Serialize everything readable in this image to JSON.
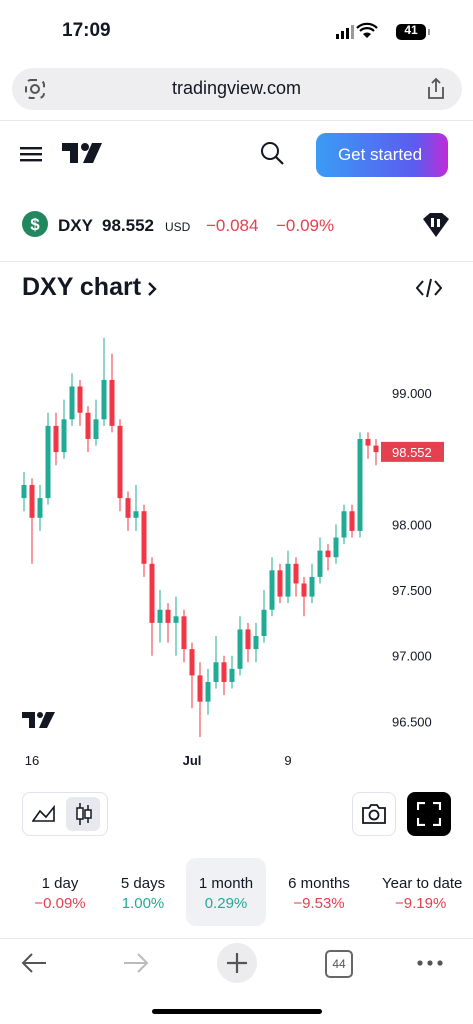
{
  "status_bar": {
    "time": "17:09",
    "battery": "41"
  },
  "browser": {
    "url": "tradingview.com",
    "tab_count": "44"
  },
  "header": {
    "cta": "Get started"
  },
  "quote": {
    "symbol": "DXY",
    "price": "98.552",
    "currency": "USD",
    "change": "−0.084",
    "change_percent": "−0.09%"
  },
  "chart_data": {
    "type": "candlestick",
    "title": "DXY chart",
    "open": [
      98.2,
      98.3,
      98.05,
      98.2,
      98.75,
      98.55,
      98.8,
      99.05,
      98.85,
      98.65,
      98.8,
      99.1,
      98.75,
      98.2,
      98.05,
      98.1,
      97.7,
      97.25,
      97.35,
      97.25,
      97.3,
      97.05,
      96.85,
      96.65,
      96.8,
      96.95,
      96.8,
      96.9,
      97.2,
      97.05,
      97.15,
      97.35,
      97.65,
      97.45,
      97.7,
      97.55,
      97.45,
      97.6,
      97.8,
      97.75,
      97.9,
      98.1,
      97.95,
      98.65,
      98.6
    ],
    "high": [
      98.4,
      98.35,
      98.3,
      98.85,
      98.85,
      98.95,
      99.15,
      99.1,
      98.9,
      98.95,
      99.42,
      99.3,
      98.8,
      98.25,
      98.3,
      98.15,
      97.75,
      97.5,
      97.4,
      97.45,
      97.35,
      97.1,
      96.95,
      96.9,
      97.15,
      97.0,
      97.0,
      97.3,
      97.25,
      97.25,
      97.5,
      97.75,
      97.7,
      97.8,
      97.75,
      97.6,
      97.7,
      97.9,
      97.85,
      98.0,
      98.15,
      98.15,
      98.7,
      98.7,
      98.65
    ],
    "low": [
      98.1,
      97.7,
      97.95,
      98.15,
      98.45,
      98.5,
      98.75,
      98.75,
      98.55,
      98.6,
      98.75,
      98.7,
      98.1,
      97.95,
      97.95,
      97.6,
      97.0,
      97.1,
      97.1,
      97.0,
      96.95,
      96.6,
      96.38,
      96.55,
      96.75,
      96.7,
      96.75,
      96.85,
      96.95,
      96.95,
      97.1,
      97.3,
      97.4,
      97.4,
      97.45,
      97.3,
      97.4,
      97.55,
      97.65,
      97.7,
      97.85,
      97.9,
      97.9,
      98.5,
      98.45
    ],
    "close": [
      98.3,
      98.05,
      98.2,
      98.75,
      98.55,
      98.8,
      99.05,
      98.85,
      98.65,
      98.8,
      99.1,
      98.75,
      98.2,
      98.05,
      98.1,
      97.7,
      97.25,
      97.35,
      97.25,
      97.3,
      97.05,
      96.85,
      96.65,
      96.8,
      96.95,
      96.8,
      96.9,
      97.2,
      97.05,
      97.15,
      97.35,
      97.65,
      97.45,
      97.7,
      97.55,
      97.45,
      97.6,
      97.8,
      97.75,
      97.9,
      98.1,
      97.95,
      98.65,
      98.6,
      98.55
    ],
    "up_color": "#22ab94",
    "down_color": "#f23645",
    "last_price": 98.552,
    "last_price_color": "#e5404f",
    "xlim": [
      -0.5,
      44.5
    ],
    "xticks": [
      {
        "value": 1,
        "label": "16"
      },
      {
        "value": 21,
        "label": "Jul"
      },
      {
        "value": 33,
        "label": "9"
      }
    ],
    "ylim": [
      96.32,
      99.48
    ],
    "yticks": [
      {
        "value": 99,
        "label": "99.000"
      },
      {
        "value": 98,
        "label": "98.000"
      },
      {
        "value": 97.5,
        "label": "97.500"
      },
      {
        "value": 97,
        "label": "97.000"
      },
      {
        "value": 96.5,
        "label": "96.500"
      }
    ],
    "grid": false
  },
  "periods": [
    {
      "name": "1 day",
      "change": "−0.09%"
    },
    {
      "name": "5 days",
      "change": "1.00%"
    },
    {
      "name": "1 month",
      "change": "0.29%"
    },
    {
      "name": "6 months",
      "change": "−9.53%"
    },
    {
      "name": "Year to date",
      "change": "−9.19%"
    }
  ]
}
